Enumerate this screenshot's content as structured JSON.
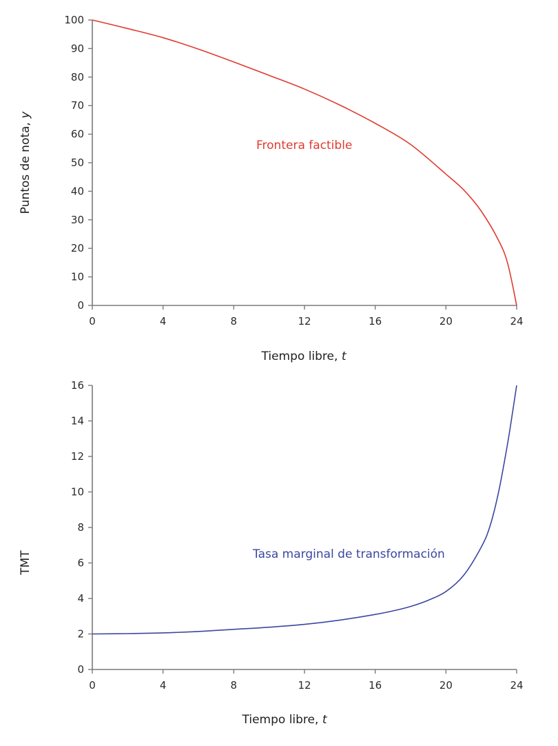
{
  "chart_data": [
    {
      "type": "line",
      "title": "",
      "xlabel": "Tiempo libre, t",
      "ylabel": "Puntos de nota, y",
      "xlim": [
        0,
        24
      ],
      "ylim": [
        0,
        100
      ],
      "x_ticks": [
        0,
        4,
        8,
        12,
        16,
        20,
        24
      ],
      "y_ticks": [
        0,
        10,
        20,
        30,
        40,
        50,
        60,
        70,
        80,
        90,
        100
      ],
      "grid": false,
      "series": [
        {
          "name": "Frontera factible",
          "color": "#e03a2f",
          "x": [
            0,
            2,
            4,
            6,
            8,
            10,
            12,
            14,
            16,
            18,
            20,
            21,
            22,
            23,
            23.5,
            24
          ],
          "values": [
            100,
            97,
            93.8,
            89.8,
            85.3,
            80.6,
            75.8,
            70.2,
            63.8,
            56.4,
            46,
            40.5,
            33,
            22.5,
            14.5,
            0
          ]
        }
      ],
      "annotations": [
        {
          "text": "Frontera factible",
          "x": 14,
          "y": 56
        }
      ]
    },
    {
      "type": "line",
      "title": "",
      "xlabel": "Tiempo libre, t",
      "ylabel": "TMT",
      "xlim": [
        0,
        24
      ],
      "ylim": [
        0,
        16
      ],
      "x_ticks": [
        0,
        4,
        8,
        12,
        16,
        20,
        24
      ],
      "y_ticks": [
        0,
        2,
        4,
        6,
        8,
        10,
        12,
        14,
        16
      ],
      "grid": false,
      "series": [
        {
          "name": "Tasa marginal de transformación",
          "color": "#3b46a0",
          "x": [
            0,
            2,
            4,
            6,
            8,
            10,
            12,
            14,
            16,
            17,
            18,
            19,
            20,
            21,
            22,
            22.5,
            23,
            23.5,
            23.8,
            24
          ],
          "values": [
            2.0,
            2.02,
            2.06,
            2.14,
            2.26,
            2.38,
            2.54,
            2.78,
            3.1,
            3.3,
            3.55,
            3.9,
            4.39,
            5.3,
            6.9,
            8.1,
            10.1,
            12.8,
            14.7,
            16
          ]
        }
      ],
      "annotations": [
        {
          "text": "Tasa marginal de transformación",
          "x": 16.6,
          "y": 6.1
        }
      ]
    }
  ],
  "top_chart": {
    "ylabel": "Puntos de nota, y",
    "xlabel": "Tiempo libre, t",
    "series_label": "Frontera factible",
    "y_ticks": [
      "0",
      "10",
      "20",
      "30",
      "40",
      "50",
      "60",
      "70",
      "80",
      "90",
      "100"
    ],
    "x_ticks": [
      "0",
      "4",
      "8",
      "12",
      "16",
      "20",
      "24"
    ],
    "line_color": "#e03a2f"
  },
  "bottom_chart": {
    "ylabel": "TMT",
    "xlabel": "Tiempo libre, t",
    "series_label": "Tasa marginal de transformación",
    "y_ticks": [
      "0",
      "2",
      "4",
      "6",
      "8",
      "10",
      "12",
      "14",
      "16"
    ],
    "x_ticks": [
      "0",
      "4",
      "8",
      "12",
      "16",
      "20",
      "24"
    ],
    "line_color": "#3b46a0"
  }
}
